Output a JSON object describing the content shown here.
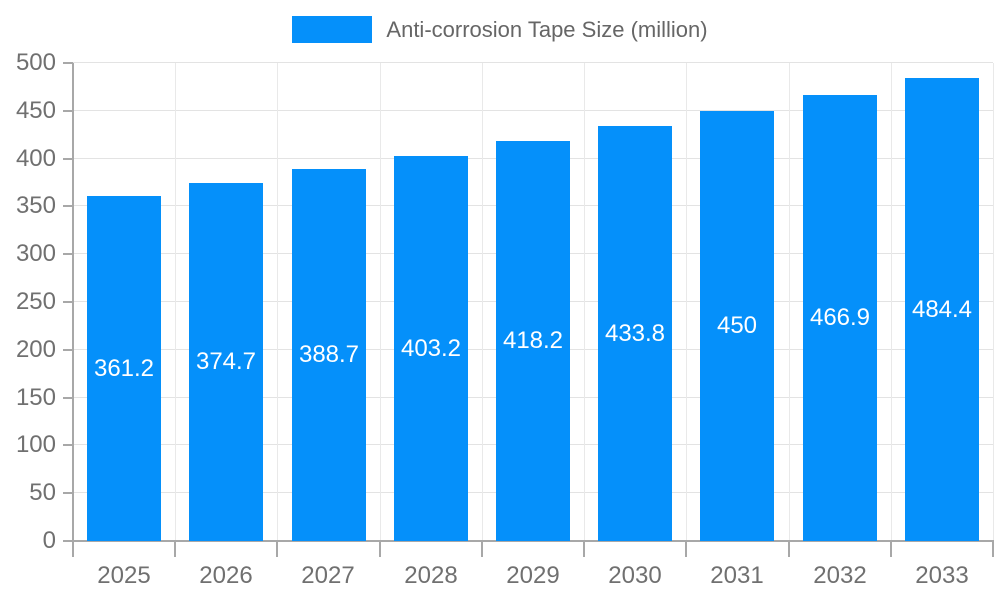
{
  "legend": {
    "label": "Anti-corrosion Tape Size (million)"
  },
  "colors": {
    "bar": "#0590FA",
    "background": "#FFFFFF",
    "axis_line": "#A8A8A8",
    "grid_line_horizontal": "#E3E3E3",
    "grid_line_vertical": "#E9E9E9",
    "axis_label": "#707070",
    "legend_text": "#666666",
    "value_label": "#FFFFFF"
  },
  "chart_data": {
    "type": "bar",
    "title": "Anti-corrosion Tape Size (million)",
    "categories": [
      "2025",
      "2026",
      "2027",
      "2028",
      "2029",
      "2030",
      "2031",
      "2032",
      "2033"
    ],
    "values": [
      361.2,
      374.7,
      388.7,
      403.2,
      418.2,
      433.8,
      450,
      466.9,
      484.4
    ],
    "value_labels": [
      "361.2",
      "374.7",
      "388.7",
      "403.2",
      "418.2",
      "433.8",
      "450",
      "466.9",
      "484.4"
    ],
    "xlabel": "",
    "ylabel": "",
    "ylim": [
      0,
      500
    ],
    "ytick_step": 50,
    "ytick_labels": [
      "0",
      "50",
      "100",
      "150",
      "200",
      "250",
      "300",
      "350",
      "400",
      "450",
      "500"
    ],
    "grid": true,
    "legend_position": "top-center",
    "value_label_position": "inside-center"
  }
}
